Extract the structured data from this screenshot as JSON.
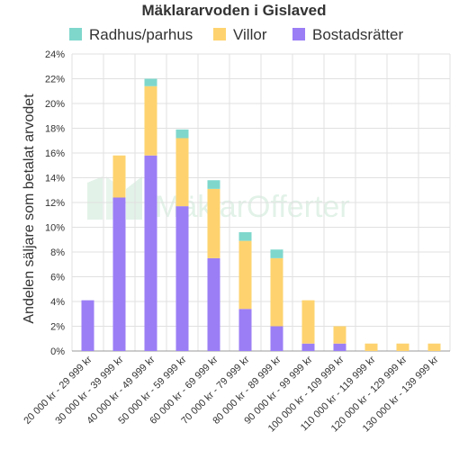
{
  "chart_data": {
    "type": "bar",
    "stacked": true,
    "title": "Mäklararvoden i Gislaved",
    "ylabel": "Andelen säljare som betalat arvodet",
    "xlabel": "",
    "ylim": [
      0,
      24
    ],
    "y_ticks": [
      "0%",
      "2%",
      "4%",
      "6%",
      "8%",
      "10%",
      "12%",
      "14%",
      "16%",
      "18%",
      "20%",
      "22%",
      "24%"
    ],
    "grid": true,
    "legend_position": "top",
    "categories": [
      "20 000 kr - 29 999 kr",
      "30 000 kr - 39 999 kr",
      "40 000 kr - 49 999 kr",
      "50 000 kr - 59 999 kr",
      "60 000 kr - 69 999 kr",
      "70 000 kr - 79 999 kr",
      "80 000 kr - 89 999 kr",
      "90 000 kr - 99 999 kr",
      "100 000 kr - 109 999 kr",
      "110 000 kr - 119 999 kr",
      "120 000 kr - 129 999 kr",
      "130 000 kr - 139 999 kr"
    ],
    "series": [
      {
        "name": "Bostadsrätter",
        "color": "#9b7ef5",
        "values": [
          4.1,
          12.4,
          15.8,
          11.7,
          7.5,
          3.4,
          2.0,
          0.6,
          0.6,
          0,
          0,
          0
        ]
      },
      {
        "name": "Villor",
        "color": "#fed36f",
        "values": [
          0,
          3.4,
          5.6,
          5.5,
          5.6,
          5.5,
          5.5,
          3.5,
          1.4,
          0.6,
          0.6,
          0.6
        ]
      },
      {
        "name": "Radhus/parhus",
        "color": "#7fd7cc",
        "values": [
          0,
          0,
          0.6,
          0.7,
          0.7,
          0.7,
          0.7,
          0,
          0,
          0,
          0,
          0
        ]
      }
    ],
    "legend_order": [
      "Radhus/parhus",
      "Villor",
      "Bostadsrätter"
    ]
  },
  "watermark": {
    "text": "MäklarOfferter"
  }
}
